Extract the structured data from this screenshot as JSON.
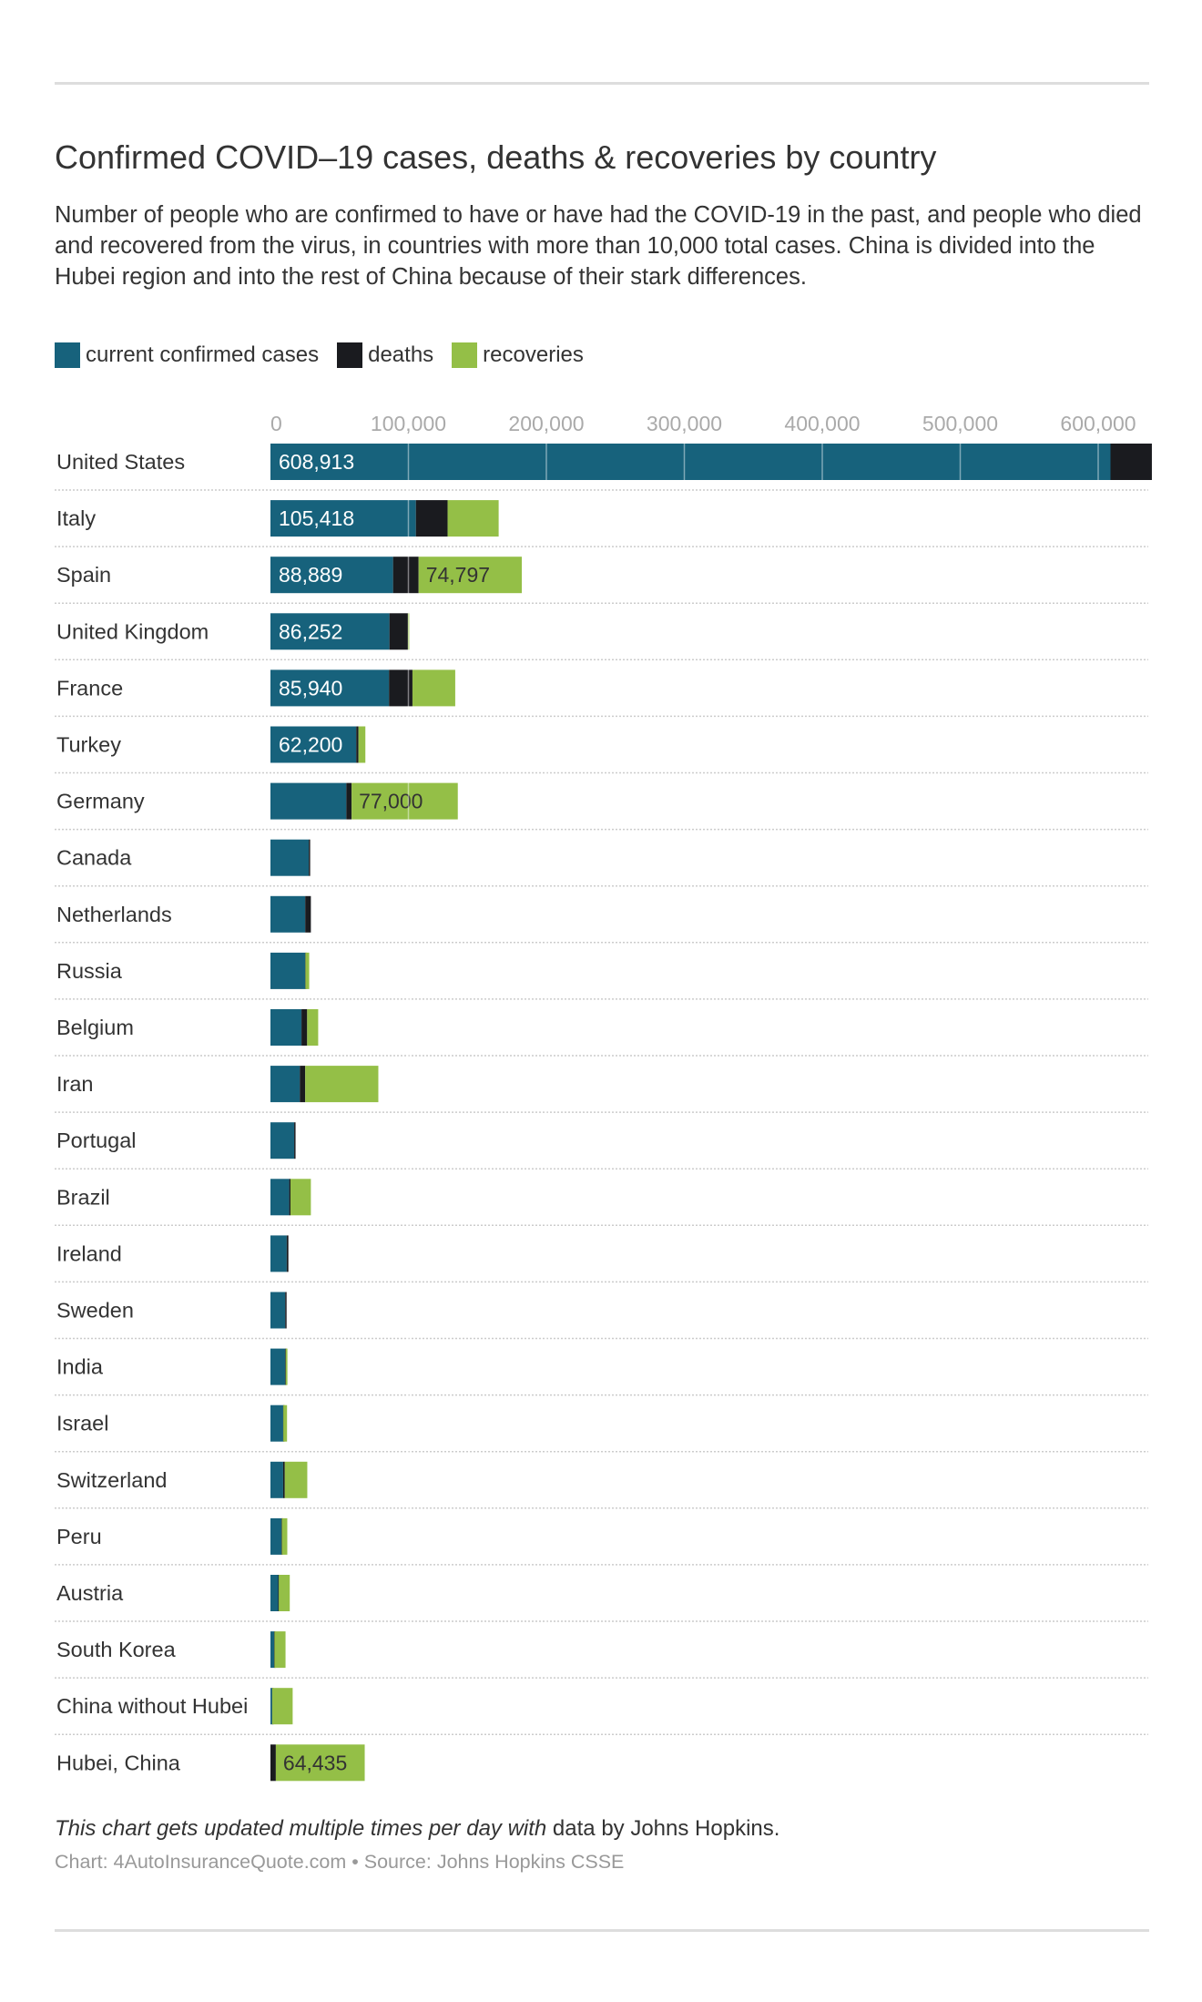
{
  "title": "Confirmed COVID–19 cases, deaths & recoveries by country",
  "description": "Number of people who are confirmed to have or have had the COVID-19 in the past, and people who died and recovered from the virus, in countries with more than 10,000 total cases. China is divided into the Hubei region and into the rest of China because of their stark differences.",
  "footnote": {
    "italic": "This chart gets updated multiple times per day with",
    "normal": " data by Johns Hopkins."
  },
  "source": "Chart: 4AutoInsuranceQuote.com • Source: Johns Hopkins CSSE",
  "chart_data": {
    "type": "bar",
    "orientation": "horizontal",
    "stacked": true,
    "xlim": [
      0,
      640000
    ],
    "xticks": [
      0,
      100000,
      200000,
      300000,
      400000,
      500000,
      600000
    ],
    "xtick_labels": [
      "0",
      "100,000",
      "200,000",
      "300,000",
      "400,000",
      "500,000",
      "600,000"
    ],
    "grid": true,
    "legend_position": "top-left",
    "categories": [
      "United States",
      "Italy",
      "Spain",
      "United Kingdom",
      "France",
      "Turkey",
      "Germany",
      "Canada",
      "Netherlands",
      "Russia",
      "Belgium",
      "Iran",
      "Portugal",
      "Brazil",
      "Ireland",
      "Sweden",
      "India",
      "Israel",
      "Switzerland",
      "Peru",
      "Austria",
      "South Korea",
      "China without Hubei",
      "Hubei, China"
    ],
    "series": [
      {
        "name": "current confirmed cases",
        "color": "#17627c",
        "values": [
          608913,
          105418,
          88889,
          86252,
          85940,
          62200,
          55000,
          27800,
          25200,
          25200,
          22500,
          21300,
          17200,
          13600,
          11800,
          10700,
          10700,
          9200,
          9200,
          8000,
          5600,
          2700,
          1200,
          0
        ],
        "labels": [
          "608,913",
          "105,418",
          "88,889",
          "86,252",
          "85,940",
          "62,200",
          "",
          "",
          "",
          "",
          "",
          "",
          "",
          "",
          "",
          "",
          "",
          "",
          "",
          "",
          "",
          "",
          "",
          ""
        ]
      },
      {
        "name": "deaths",
        "color": "#1a1b1f",
        "values": [
          30000,
          23000,
          18500,
          13400,
          17000,
          1600,
          3800,
          900,
          4100,
          200,
          4100,
          3900,
          600,
          900,
          1200,
          100,
          400,
          120,
          1200,
          300,
          400,
          230,
          100,
          3900
        ],
        "labels": [
          "",
          "",
          "",
          "",
          "",
          "",
          "",
          "",
          "",
          "",
          "",
          "",
          "",
          "",
          "",
          "",
          "",
          "",
          "",
          "",
          "",
          "",
          "",
          ""
        ]
      },
      {
        "name": "recoveries",
        "color": "#94bf47",
        "values": [
          0,
          37000,
          74797,
          300,
          31000,
          5000,
          77000,
          0,
          0,
          2700,
          8000,
          53000,
          0,
          14800,
          0,
          0,
          1200,
          2700,
          16300,
          3900,
          8000,
          8000,
          14800,
          64435
        ],
        "labels": [
          "",
          "",
          "74,797",
          "",
          "",
          "",
          "77,000",
          "",
          "",
          "",
          "",
          "",
          "",
          "",
          "",
          "",
          "",
          "",
          "",
          "",
          "",
          "",
          "",
          "64,435"
        ]
      }
    ]
  }
}
